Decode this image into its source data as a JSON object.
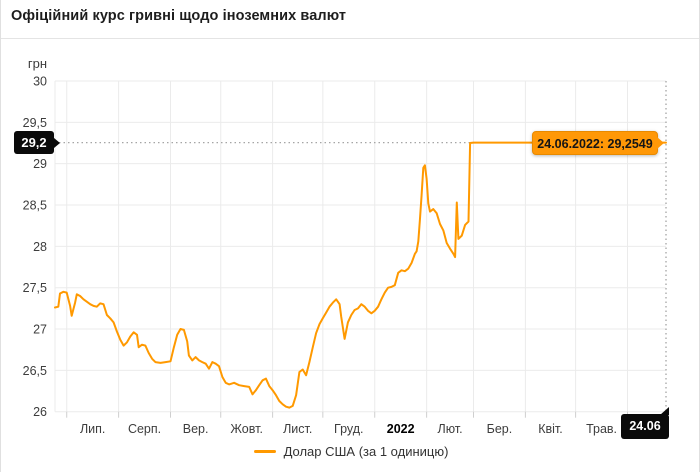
{
  "header": {
    "title": "Офіційний курс гривні щодо іноземних валют"
  },
  "y_axis": {
    "unit": "грн",
    "marker_label": "29,2"
  },
  "x_axis": {
    "end_marker_label": "24.06"
  },
  "tooltip": {
    "text": "24.06.2022: 29,2549"
  },
  "legend": {
    "label": "Долар США (за 1 одиницю)"
  },
  "colors": {
    "line": "#ff9900",
    "tooltip_bg": "#ff9807",
    "badge_bg": "#0a0a0a",
    "grid": "#ebebeb",
    "tick": "#cfcfcf",
    "dotted": "#a5a5a5",
    "axis_text": "#3d3d3d"
  },
  "chart_data": {
    "type": "line",
    "title": "Офіційний курс гривні щодо іноземних валют",
    "ylabel": "грн",
    "ylim": [
      26,
      30
    ],
    "y_tick_step": 0.5,
    "grid": true,
    "legend_position": "bottom",
    "x_domain_days": [
      0,
      365
    ],
    "months": [
      {
        "label": "Лип.",
        "day": 7,
        "bold": false
      },
      {
        "label": "Серп.",
        "day": 38,
        "bold": false
      },
      {
        "label": "Вер.",
        "day": 69,
        "bold": false
      },
      {
        "label": "Жовт.",
        "day": 99,
        "bold": false
      },
      {
        "label": "Лист.",
        "day": 130,
        "bold": false
      },
      {
        "label": "Груд.",
        "day": 160,
        "bold": false
      },
      {
        "label": "2022",
        "day": 191,
        "bold": true
      },
      {
        "label": "Лют.",
        "day": 222,
        "bold": false
      },
      {
        "label": "Бер.",
        "day": 250,
        "bold": false
      },
      {
        "label": "Квіт.",
        "day": 281,
        "bold": false
      },
      {
        "label": "Трав.",
        "day": 311,
        "bold": false
      },
      {
        "label": "",
        "day": 342,
        "bold": false
      }
    ],
    "marker_value": 29.2549,
    "series": [
      {
        "name": "Долар США (за 1 одиницю)",
        "color": "#ff9900",
        "points": [
          [
            0,
            27.26
          ],
          [
            2,
            27.27
          ],
          [
            3,
            27.43
          ],
          [
            5,
            27.45
          ],
          [
            7,
            27.44
          ],
          [
            9,
            27.28
          ],
          [
            10,
            27.16
          ],
          [
            12,
            27.32
          ],
          [
            13,
            27.42
          ],
          [
            15,
            27.4
          ],
          [
            17,
            27.36
          ],
          [
            19,
            27.33
          ],
          [
            21,
            27.3
          ],
          [
            23,
            27.28
          ],
          [
            25,
            27.27
          ],
          [
            27,
            27.31
          ],
          [
            29,
            27.3
          ],
          [
            31,
            27.17
          ],
          [
            33,
            27.13
          ],
          [
            35,
            27.08
          ],
          [
            37,
            26.97
          ],
          [
            39,
            26.87
          ],
          [
            41,
            26.8
          ],
          [
            43,
            26.84
          ],
          [
            45,
            26.91
          ],
          [
            47,
            26.96
          ],
          [
            49,
            26.93
          ],
          [
            50,
            26.78
          ],
          [
            52,
            26.81
          ],
          [
            54,
            26.8
          ],
          [
            56,
            26.71
          ],
          [
            58,
            26.64
          ],
          [
            60,
            26.6
          ],
          [
            63,
            26.59
          ],
          [
            66,
            26.6
          ],
          [
            69,
            26.61
          ],
          [
            71,
            26.78
          ],
          [
            73,
            26.93
          ],
          [
            75,
            27.0
          ],
          [
            77,
            26.99
          ],
          [
            79,
            26.85
          ],
          [
            80,
            26.68
          ],
          [
            82,
            26.62
          ],
          [
            84,
            26.66
          ],
          [
            86,
            26.62
          ],
          [
            88,
            26.6
          ],
          [
            90,
            26.58
          ],
          [
            92,
            26.52
          ],
          [
            94,
            26.6
          ],
          [
            96,
            26.58
          ],
          [
            98,
            26.55
          ],
          [
            100,
            26.42
          ],
          [
            102,
            26.35
          ],
          [
            104,
            26.33
          ],
          [
            107,
            26.35
          ],
          [
            110,
            26.32
          ],
          [
            113,
            26.31
          ],
          [
            116,
            26.3
          ],
          [
            118,
            26.21
          ],
          [
            120,
            26.26
          ],
          [
            122,
            26.32
          ],
          [
            124,
            26.38
          ],
          [
            126,
            26.4
          ],
          [
            128,
            26.31
          ],
          [
            130,
            26.26
          ],
          [
            132,
            26.2
          ],
          [
            134,
            26.13
          ],
          [
            136,
            26.09
          ],
          [
            138,
            26.06
          ],
          [
            140,
            26.05
          ],
          [
            142,
            26.07
          ],
          [
            144,
            26.2
          ],
          [
            146,
            26.48
          ],
          [
            148,
            26.51
          ],
          [
            150,
            26.44
          ],
          [
            152,
            26.6
          ],
          [
            154,
            26.78
          ],
          [
            156,
            26.95
          ],
          [
            158,
            27.06
          ],
          [
            160,
            27.13
          ],
          [
            162,
            27.2
          ],
          [
            164,
            27.27
          ],
          [
            166,
            27.32
          ],
          [
            168,
            27.36
          ],
          [
            170,
            27.3
          ],
          [
            171,
            27.15
          ],
          [
            173,
            26.88
          ],
          [
            175,
            27.08
          ],
          [
            177,
            27.17
          ],
          [
            179,
            27.23
          ],
          [
            181,
            27.25
          ],
          [
            183,
            27.3
          ],
          [
            185,
            27.27
          ],
          [
            187,
            27.22
          ],
          [
            189,
            27.19
          ],
          [
            191,
            27.22
          ],
          [
            193,
            27.27
          ],
          [
            195,
            27.36
          ],
          [
            197,
            27.44
          ],
          [
            199,
            27.5
          ],
          [
            201,
            27.51
          ],
          [
            203,
            27.53
          ],
          [
            205,
            27.68
          ],
          [
            207,
            27.71
          ],
          [
            209,
            27.7
          ],
          [
            211,
            27.73
          ],
          [
            213,
            27.8
          ],
          [
            215,
            27.91
          ],
          [
            216,
            27.94
          ],
          [
            217,
            28.06
          ],
          [
            218,
            28.32
          ],
          [
            219,
            28.62
          ],
          [
            220,
            28.95
          ],
          [
            221,
            28.98
          ],
          [
            222,
            28.82
          ],
          [
            223,
            28.52
          ],
          [
            224,
            28.42
          ],
          [
            226,
            28.45
          ],
          [
            228,
            28.4
          ],
          [
            230,
            28.27
          ],
          [
            232,
            28.19
          ],
          [
            234,
            28.04
          ],
          [
            236,
            27.97
          ],
          [
            238,
            27.91
          ],
          [
            239,
            27.87
          ],
          [
            240,
            28.53
          ],
          [
            241,
            28.09
          ],
          [
            243,
            28.13
          ],
          [
            245,
            28.26
          ],
          [
            247,
            28.3
          ],
          [
            248,
            29.25
          ],
          [
            250,
            29.2549
          ],
          [
            365,
            29.2549
          ]
        ]
      }
    ]
  }
}
